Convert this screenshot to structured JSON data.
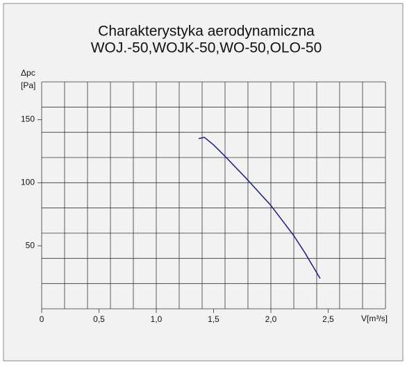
{
  "chart_data": {
    "type": "line",
    "title": [
      "Charakterystyka aerodynamiczna",
      "WOJ.-50,WOJK-50,WO-50,OLO-50"
    ],
    "y_label": [
      "Δpc",
      "[Pa]"
    ],
    "x_label": "V[m³/s]",
    "xlim": [
      0,
      3.0
    ],
    "ylim": [
      0,
      180
    ],
    "xticks": [
      0,
      {
        "value": 0.5,
        "label": "0,5"
      },
      {
        "value": 1.0,
        "label": "1,0"
      },
      {
        "value": 1.5,
        "label": "1,5"
      },
      {
        "value": 2.0,
        "label": "2,0"
      },
      {
        "value": 2.5,
        "label": "2,5"
      }
    ],
    "yticks": [
      50,
      100,
      150
    ],
    "xgrid": [
      0,
      0.2,
      0.4,
      0.6,
      0.8,
      1.0,
      1.2,
      1.4,
      1.6,
      1.8,
      2.0,
      2.2,
      2.4,
      2.6,
      2.8,
      3.0
    ],
    "ygrid": [
      0,
      20,
      40,
      60,
      80,
      100,
      120,
      140,
      160,
      180
    ],
    "grid": true,
    "series": [
      {
        "color": "#1c1c80",
        "x": [
          1.37,
          1.42,
          1.5,
          1.6,
          1.8,
          2.0,
          2.1,
          2.2,
          2.3,
          2.43
        ],
        "values": [
          135,
          136,
          130,
          121,
          102,
          82,
          70,
          58,
          44,
          24
        ]
      }
    ]
  }
}
